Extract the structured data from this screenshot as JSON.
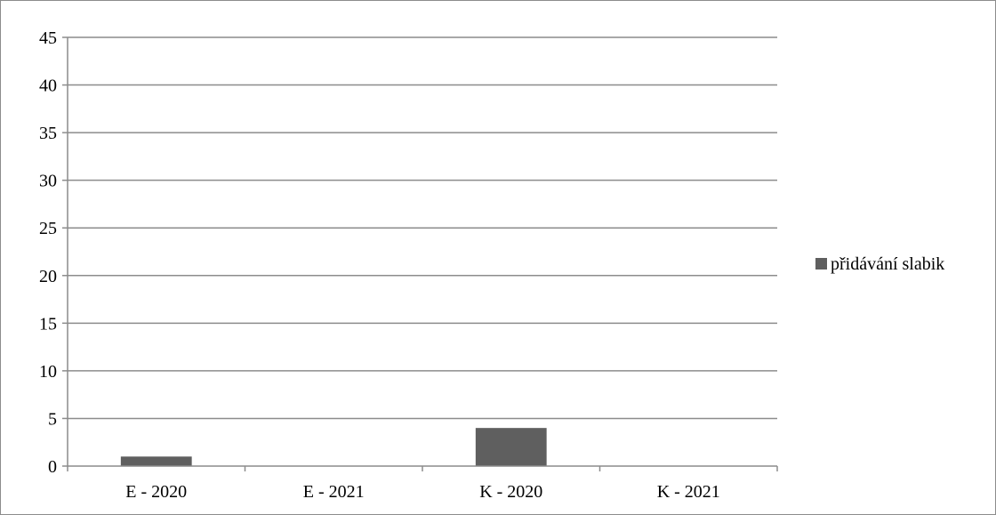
{
  "chart_data": {
    "type": "bar",
    "categories": [
      "E - 2020",
      "E - 2021",
      "K - 2020",
      "K - 2021"
    ],
    "series": [
      {
        "name": "přidávání slabik",
        "values": [
          1,
          0,
          4,
          0
        ],
        "color": "#5f5f5f"
      }
    ],
    "ylim": [
      0,
      45
    ],
    "yticks": [
      0,
      5,
      10,
      15,
      20,
      25,
      30,
      35,
      40,
      45
    ],
    "grid": true,
    "legend": "right",
    "gridColor": "#8c8c8c",
    "axisColor": "#8c8c8c"
  }
}
